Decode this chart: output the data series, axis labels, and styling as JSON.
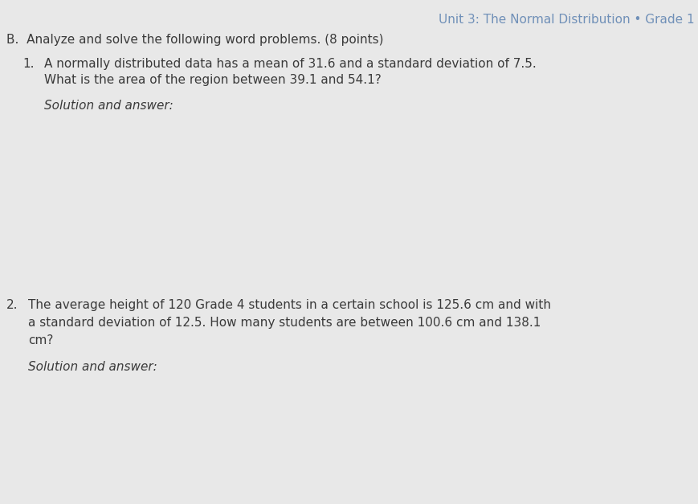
{
  "background_color": "#c8c8c8",
  "paper_color": "#e8e8e8",
  "header_text": "Unit 3: The Normal Distribution • Grade 1",
  "header_color": "#7090b8",
  "header_fontsize": 11,
  "section_label": "B.",
  "section_text": "Analyze and solve the following word problems. (8 points)",
  "section_fontsize": 11,
  "q1_number": "1.",
  "q1_line1": "A normally distributed data has a mean of 31.6 and a standard deviation of 7.5.",
  "q1_line2": "What is the area of the region between 39.1 and 54.1?",
  "q1_fontsize": 11,
  "q1_sol_label": "Solution and answer:",
  "q1_sol_fontsize": 11,
  "q2_number": "2.",
  "q2_line1": "The average height of 120 Grade 4 students in a certain school is 125.6 cm and with",
  "q2_line2": "a standard deviation of 12.5. How many students are between 100.6 cm and 138.1",
  "q2_line3": "cm?",
  "q2_fontsize": 11,
  "q2_sol_label": "Solution and answer:",
  "q2_sol_fontsize": 11,
  "text_color": "#3a3a3a",
  "italic_color": "#3a3a3a"
}
